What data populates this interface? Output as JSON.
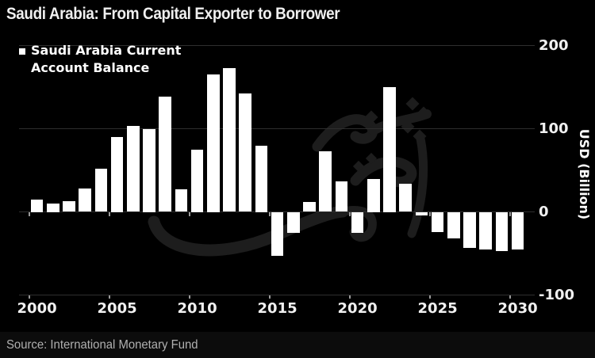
{
  "title": "Saudi Arabia: From Capital Exporter to Borrower",
  "legend": {
    "marker": "■",
    "line1": "Saudi Arabia Current",
    "line2": "Account Balance"
  },
  "source": "Source: International Monetary Fund",
  "y_axis": {
    "title": "USD (Billion)",
    "ticks": [
      {
        "label": "200",
        "value": 200
      },
      {
        "label": "100",
        "value": 100
      },
      {
        "label": "0",
        "value": 0
      },
      {
        "label": "-100",
        "value": -100
      }
    ]
  },
  "x_axis": {
    "ticks": [
      {
        "label": "2000",
        "value": 2000
      },
      {
        "label": "2005",
        "value": 2005
      },
      {
        "label": "2010",
        "value": 2010
      },
      {
        "label": "2015",
        "value": 2015
      },
      {
        "label": "2020",
        "value": 2020
      },
      {
        "label": "2025",
        "value": 2025
      },
      {
        "label": "2030",
        "value": 2030
      }
    ]
  },
  "colors": {
    "background": "#000000",
    "bar": "#ffffff",
    "gridline": "#2e2e2e",
    "tick_label": "#f0f0f0",
    "axis_tick": "#999999",
    "source_text": "#b0b0b0",
    "watermark": "#1d1d1d"
  },
  "chart_data": {
    "type": "bar",
    "title": "Saudi Arabia Current Account Balance",
    "xlabel": "",
    "ylabel": "USD (Billion)",
    "ylim": [
      -100,
      200
    ],
    "xlim": [
      2000,
      2030
    ],
    "grid": "horizontal",
    "legend_position": "top-left",
    "x": [
      2000,
      2001,
      2002,
      2003,
      2004,
      2005,
      2006,
      2007,
      2008,
      2009,
      2010,
      2011,
      2012,
      2013,
      2014,
      2015,
      2016,
      2017,
      2018,
      2019,
      2020,
      2021,
      2022,
      2023,
      2024,
      2025,
      2026,
      2027,
      2028,
      2029,
      2030
    ],
    "values": [
      15,
      10,
      13,
      28,
      52,
      90,
      103,
      100,
      139,
      27,
      75,
      165,
      173,
      142,
      80,
      -53,
      -25,
      12,
      73,
      37,
      -25,
      40,
      150,
      34,
      -4,
      -24,
      -32,
      -43,
      -45,
      -47,
      -45
    ]
  }
}
